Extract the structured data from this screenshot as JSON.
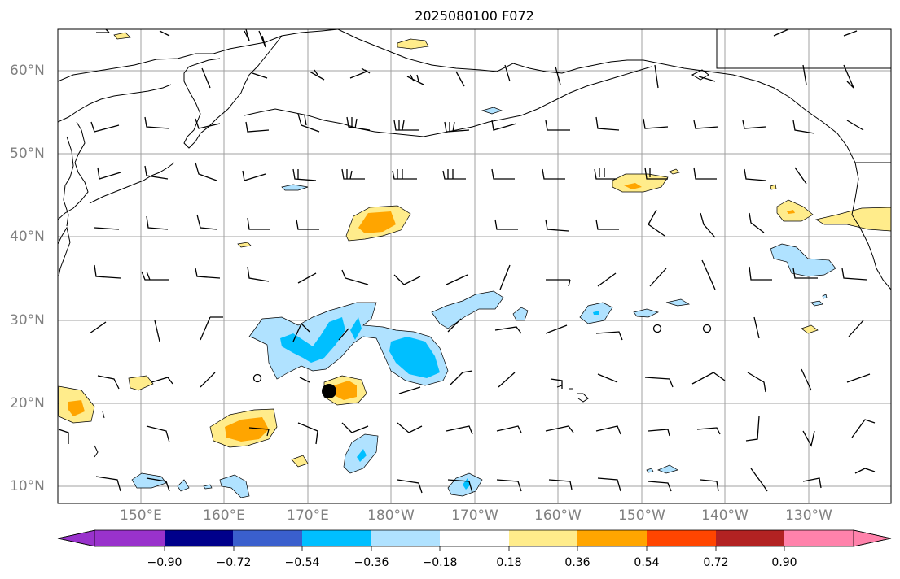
{
  "title": "2025080100 F072",
  "lat_ticks": [
    "60°N",
    "50°N",
    "40°N",
    "30°N",
    "20°N",
    "10°N"
  ],
  "lon_ticks": [
    "150°E",
    "160°E",
    "170°E",
    "180°W",
    "170°W",
    "160°W",
    "150°W",
    "140°W",
    "130°W"
  ],
  "colorbar": {
    "labels": [
      "−0.90",
      "−0.72",
      "−0.54",
      "−0.36",
      "−0.18",
      "0.18",
      "0.36",
      "0.54",
      "0.72",
      "0.90"
    ],
    "colors": [
      "#9932cc",
      "#00008b",
      "#3a5fcd",
      "#00bfff",
      "#b0e2ff",
      "#ffffff",
      "#ffec8b",
      "#ffa500",
      "#ff4500",
      "#b22222",
      "#ff82ab"
    ]
  },
  "colors": {
    "coast": "#000000",
    "grid": "#a0a0a0",
    "light_yellow": "#ffec8b",
    "orange": "#ffa500",
    "light_blue": "#b0e2ff",
    "deep_sky_blue": "#00bfff"
  },
  "storm_marker": {
    "lat": 21.6,
    "lon": 173.4
  }
}
